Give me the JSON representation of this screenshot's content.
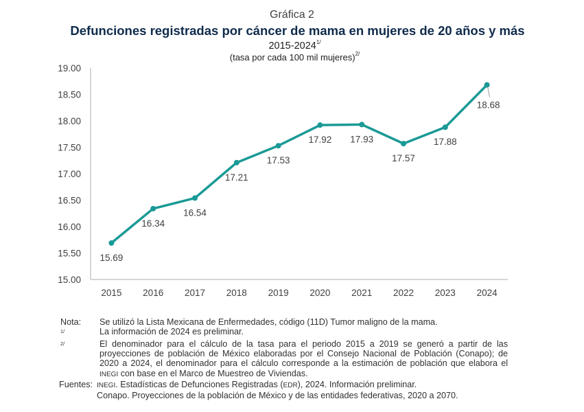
{
  "caption": {
    "label": "Gráfica 2",
    "title": "Defunciones registradas por cáncer de mama en mujeres de 20 años y más",
    "period": "2015-2024",
    "period_note": "1/",
    "unit": "(tasa por cada 100 mil mujeres)",
    "unit_note": "2/"
  },
  "colors": {
    "title": "#0f2b4c",
    "series": "#1a9a96",
    "axis": "#c8c8c8",
    "text": "#404040"
  },
  "chart_data": {
    "type": "line",
    "title": "Defunciones registradas por cáncer de mama en mujeres de 20 años y más",
    "subtitle": "2015-2024 (tasa por cada 100 mil mujeres)",
    "xlabel": "",
    "ylabel": "",
    "categories": [
      "2015",
      "2016",
      "2017",
      "2018",
      "2019",
      "2020",
      "2021",
      "2022",
      "2023",
      "2024"
    ],
    "series": [
      {
        "name": "Tasa por cada 100 mil mujeres",
        "values": [
          15.69,
          16.34,
          16.54,
          17.21,
          17.53,
          17.92,
          17.93,
          17.57,
          17.88,
          18.68
        ],
        "labels": [
          "15.69",
          "16.34",
          "16.54",
          "17.21",
          "17.53",
          "17.92",
          "17.93",
          "17.57",
          "17.88",
          "18.68"
        ]
      }
    ],
    "ylim": [
      15.0,
      19.0
    ],
    "yticks": [
      "15.00",
      "15.50",
      "16.00",
      "16.50",
      "17.00",
      "17.50",
      "18.00",
      "18.50",
      "19.00"
    ],
    "grid": false,
    "legend": "none"
  },
  "notes": {
    "nota_key": "Nota:",
    "nota_text": "Se utilizó la Lista Mexicana de Enfermedades, código (11D) Tumor maligno de la mama.",
    "note1_key": "1/",
    "note1_text": "La información de 2024 es preliminar.",
    "note2_key": "2/",
    "note2_text_a": "El denominador para el cálculo de la tasa para el periodo 2015 a 2019 se generó a partir de las proyecciones de población de México elaboradas por el Consejo Nacional de Población (Conapo); de 2020 a 2024, el denominador para el cálculo corresponde a la estimación de población que elabora el ",
    "note2_inegi": "INEGI",
    "note2_text_b": " con base en el Marco de Muestreo de Viviendas.",
    "fuentes_key": "Fuentes:",
    "fuente1_inegi": "INEGI",
    "fuente1_a": ". Estadísticas de Defunciones Registradas (",
    "fuente1_edr": "EDR",
    "fuente1_b": "), 2024. Información preliminar.",
    "fuente2": "Conapo. Proyecciones de la población de México y de las entidades federativas, 2020 a 2070."
  }
}
